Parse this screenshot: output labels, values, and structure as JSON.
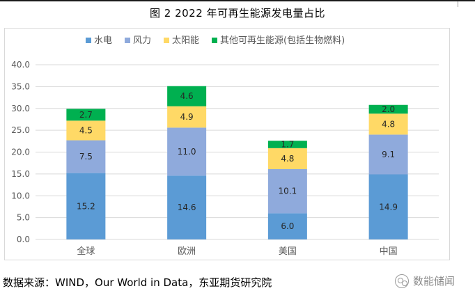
{
  "figure": {
    "title": "图 2 2022 年可再生能源发电量占比",
    "source": "数据来源：WIND，Our World in Data，东亚期货研究院",
    "watermark": "数能储闻"
  },
  "colors": {
    "hydro": "#5b9bd5",
    "wind": "#8faadc",
    "solar": "#ffd966",
    "other": "#00b050",
    "grid": "#d9d9d9",
    "axis_text": "#595959",
    "label_text": "#262626"
  },
  "chart_data": {
    "type": "bar",
    "stacked": true,
    "title": "图 2 2022 年可再生能源发电量占比",
    "categories": [
      "全球",
      "欧洲",
      "美国",
      "中国"
    ],
    "series": [
      {
        "name": "水电",
        "color_key": "hydro",
        "values": [
          15.2,
          14.6,
          6.0,
          14.9
        ]
      },
      {
        "name": "风力",
        "color_key": "wind",
        "values": [
          7.5,
          11.0,
          10.1,
          9.1
        ]
      },
      {
        "name": "太阳能",
        "color_key": "solar",
        "values": [
          4.5,
          4.9,
          4.8,
          4.8
        ]
      },
      {
        "name": "其他可再生能源(包括生物燃料)",
        "color_key": "other",
        "values": [
          2.7,
          4.6,
          1.7,
          2.0
        ]
      }
    ],
    "ylim": [
      0,
      40
    ],
    "yticks": [
      "0.0",
      "5.0",
      "10.0",
      "15.0",
      "20.0",
      "25.0",
      "30.0",
      "35.0",
      "40.0"
    ],
    "xlabel": "",
    "ylabel": "",
    "legend": "top",
    "grid": true
  }
}
